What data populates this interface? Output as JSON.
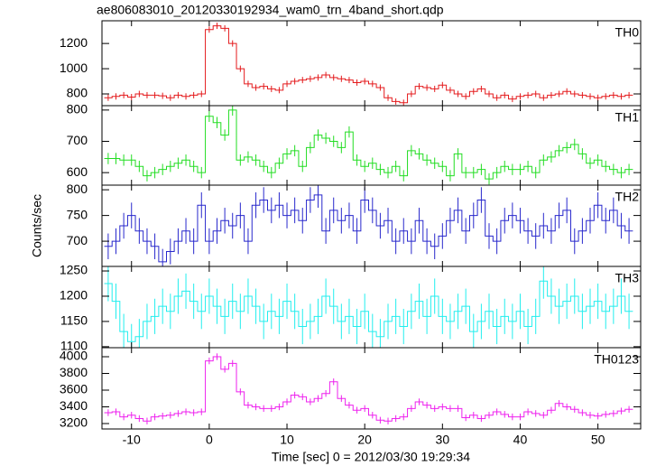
{
  "chart_data": {
    "type": "step",
    "title": "ae806083010_20120330192934_wam0_trn_4band_short.qdp",
    "xlabel": "Time [sec] 0 = 2012/03/30 19:29:34",
    "ylabel": "Counts/sec",
    "xlim": [
      -13.8,
      55.5
    ],
    "xticks": [
      -10,
      0,
      10,
      20,
      30,
      40,
      50
    ],
    "x": [
      -13,
      -12,
      -11,
      -10,
      -9,
      -8,
      -7,
      -6,
      -5,
      -4,
      -3,
      -2,
      -1,
      0,
      1,
      2,
      3,
      4,
      5,
      6,
      7,
      8,
      9,
      10,
      11,
      12,
      13,
      14,
      15,
      16,
      17,
      18,
      19,
      20,
      21,
      22,
      23,
      24,
      25,
      26,
      27,
      28,
      29,
      30,
      31,
      32,
      33,
      34,
      35,
      36,
      37,
      38,
      39,
      40,
      41,
      42,
      43,
      44,
      45,
      46,
      47,
      48,
      49,
      50,
      51,
      52,
      53,
      54
    ],
    "panels": [
      {
        "name": "TH0",
        "color": "#e41a1c",
        "error": 25,
        "ylim": [
          707,
          1380
        ],
        "yticks": [
          800,
          1000,
          1200
        ],
        "values": [
          770,
          780,
          790,
          775,
          800,
          790,
          790,
          785,
          770,
          790,
          780,
          790,
          800,
          1310,
          1340,
          1320,
          1200,
          1000,
          880,
          850,
          860,
          840,
          830,
          880,
          900,
          910,
          920,
          930,
          950,
          930,
          920,
          910,
          890,
          900,
          880,
          850,
          770,
          740,
          730,
          800,
          860,
          850,
          840,
          870,
          830,
          800,
          780,
          820,
          840,
          800,
          770,
          790,
          760,
          780,
          790,
          800,
          770,
          790,
          800,
          820,
          800,
          790,
          780,
          770,
          780,
          790,
          780,
          790
        ]
      },
      {
        "name": "TH1",
        "color": "#22dd22",
        "error": 18,
        "ylim": [
          560,
          814
        ],
        "yticks": [
          600,
          700,
          800
        ],
        "values": [
          645,
          645,
          640,
          640,
          620,
          590,
          600,
          610,
          620,
          630,
          640,
          620,
          600,
          780,
          760,
          720,
          800,
          640,
          650,
          640,
          620,
          600,
          630,
          660,
          670,
          620,
          680,
          720,
          710,
          700,
          680,
          730,
          640,
          620,
          630,
          610,
          600,
          620,
          590,
          670,
          660,
          640,
          630,
          620,
          590,
          660,
          600,
          600,
          610,
          580,
          600,
          620,
          610,
          610,
          620,
          600,
          640,
          650,
          670,
          680,
          690,
          660,
          630,
          640,
          620,
          610,
          600,
          610
        ]
      },
      {
        "name": "TH2",
        "color": "#2828cc",
        "error": 25,
        "ylim": [
          651,
          809
        ],
        "yticks": [
          700,
          750,
          800
        ],
        "values": [
          690,
          700,
          730,
          750,
          720,
          700,
          690,
          660,
          680,
          700,
          720,
          700,
          770,
          700,
          720,
          740,
          730,
          750,
          700,
          770,
          780,
          760,
          770,
          750,
          760,
          740,
          780,
          790,
          720,
          760,
          740,
          750,
          720,
          780,
          760,
          730,
          740,
          700,
          720,
          700,
          740,
          700,
          690,
          710,
          740,
          760,
          720,
          750,
          780,
          710,
          700,
          740,
          750,
          740,
          720,
          710,
          730,
          720,
          750,
          760,
          700,
          720,
          740,
          770,
          740,
          760,
          730,
          720
        ]
      },
      {
        "name": "TH3",
        "color": "#22eeee",
        "error": 35,
        "ylim": [
          1098,
          1259
        ],
        "yticks": [
          1100,
          1150,
          1200,
          1250
        ],
        "values": [
          1225,
          1190,
          1130,
          1110,
          1120,
          1150,
          1160,
          1180,
          1170,
          1200,
          1210,
          1190,
          1170,
          1200,
          1180,
          1160,
          1190,
          1170,
          1200,
          1180,
          1150,
          1170,
          1160,
          1190,
          1170,
          1140,
          1150,
          1160,
          1200,
          1180,
          1150,
          1160,
          1140,
          1170,
          1130,
          1120,
          1150,
          1160,
          1140,
          1170,
          1190,
          1160,
          1200,
          1160,
          1150,
          1170,
          1180,
          1130,
          1150,
          1170,
          1140,
          1160,
          1150,
          1170,
          1140,
          1160,
          1230,
          1200,
          1180,
          1190,
          1200,
          1170,
          1180,
          1190,
          1170,
          1180,
          1200,
          1170
        ]
      },
      {
        "name": "TH0123",
        "color": "#ee22ee",
        "error": 40,
        "ylim": [
          3135,
          4108
        ],
        "yticks": [
          3200,
          3400,
          3600,
          3800,
          4000
        ],
        "values": [
          3330,
          3340,
          3280,
          3300,
          3260,
          3230,
          3280,
          3290,
          3300,
          3320,
          3340,
          3330,
          3340,
          3950,
          4000,
          3850,
          3920,
          3580,
          3420,
          3400,
          3380,
          3380,
          3400,
          3460,
          3540,
          3520,
          3460,
          3500,
          3560,
          3700,
          3500,
          3420,
          3360,
          3380,
          3300,
          3240,
          3230,
          3260,
          3280,
          3380,
          3460,
          3420,
          3380,
          3400,
          3380,
          3380,
          3270,
          3300,
          3260,
          3300,
          3340,
          3310,
          3280,
          3280,
          3340,
          3320,
          3300,
          3360,
          3440,
          3400,
          3370,
          3330,
          3300,
          3290,
          3310,
          3320,
          3350,
          3370
        ]
      }
    ]
  }
}
